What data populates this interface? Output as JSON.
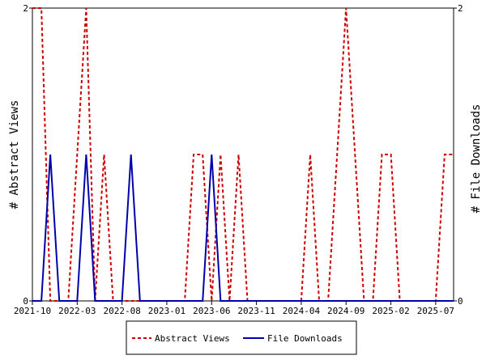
{
  "chart_data": {
    "type": "line",
    "title": "",
    "ylabel_left": "# Abstract Views",
    "ylabel_right": "# File Downloads",
    "x_tick_labels": [
      "2021-10",
      "2022-03",
      "2022-08",
      "2023-01",
      "2023-06",
      "2023-11",
      "2024-04",
      "2024-09",
      "2025-02",
      "2025-07"
    ],
    "x_tick_positions": [
      0,
      5,
      10,
      15,
      20,
      25,
      30,
      35,
      40,
      45
    ],
    "x_range": [
      0,
      47
    ],
    "ylim_left": [
      0,
      2
    ],
    "ylim_right": [
      0,
      2
    ],
    "y_tick_labels_left": [
      "0",
      "2"
    ],
    "y_tick_labels_right": [
      "0",
      "2"
    ],
    "grid": false,
    "legend_position": "bottom-center",
    "series": [
      {
        "name": "Abstract Views",
        "color": "#cc0000",
        "style": "dashed",
        "axis": "left",
        "values": [
          2,
          2,
          0,
          0,
          0,
          1,
          2,
          0,
          1,
          0,
          0,
          0,
          0,
          0,
          0,
          0,
          0,
          0,
          1,
          1,
          0,
          1,
          0,
          1,
          0,
          0,
          0,
          0,
          0,
          0,
          0,
          1,
          0,
          0,
          1,
          2,
          1,
          0,
          0,
          1,
          1,
          0,
          0,
          0,
          0,
          0,
          1,
          1
        ]
      },
      {
        "name": "File Downloads",
        "color": "#0000aa",
        "style": "solid",
        "axis": "right",
        "values": [
          0,
          0,
          1,
          0,
          0,
          0,
          1,
          0,
          0,
          0,
          0,
          1,
          0,
          0,
          0,
          0,
          0,
          0,
          0,
          0,
          1,
          0,
          0,
          0,
          0,
          0,
          0,
          0,
          0,
          0,
          0,
          0,
          0,
          0,
          0,
          0,
          0,
          0,
          0,
          0,
          0,
          0,
          0,
          0,
          0,
          0,
          0,
          0
        ]
      }
    ]
  }
}
